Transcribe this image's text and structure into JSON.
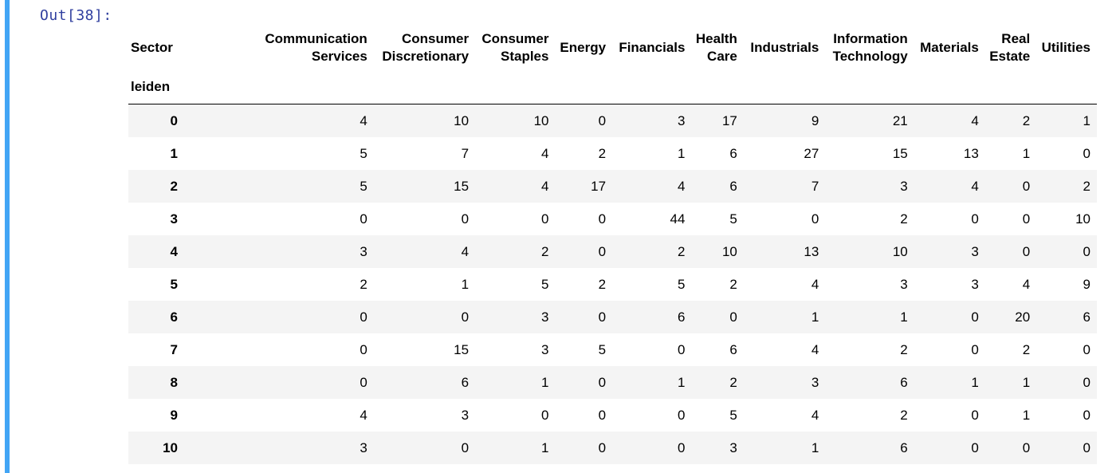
{
  "output_prompt": "Out[38]:",
  "table": {
    "columns_name": "Sector",
    "index_name": "leiden",
    "columns": [
      [
        "Communication",
        "Services"
      ],
      [
        "Consumer",
        "Discretionary"
      ],
      [
        "Consumer",
        "Staples"
      ],
      [
        "Energy"
      ],
      [
        "Financials"
      ],
      [
        "Health",
        "Care"
      ],
      [
        "Industrials"
      ],
      [
        "Information",
        "Technology"
      ],
      [
        "Materials"
      ],
      [
        "Real",
        "Estate"
      ],
      [
        "Utilities"
      ]
    ],
    "rows": [
      {
        "index": "0",
        "values": [
          "4",
          "10",
          "10",
          "0",
          "3",
          "17",
          "9",
          "21",
          "4",
          "2",
          "1"
        ]
      },
      {
        "index": "1",
        "values": [
          "5",
          "7",
          "4",
          "2",
          "1",
          "6",
          "27",
          "15",
          "13",
          "1",
          "0"
        ]
      },
      {
        "index": "2",
        "values": [
          "5",
          "15",
          "4",
          "17",
          "4",
          "6",
          "7",
          "3",
          "4",
          "0",
          "2"
        ]
      },
      {
        "index": "3",
        "values": [
          "0",
          "0",
          "0",
          "0",
          "44",
          "5",
          "0",
          "2",
          "0",
          "0",
          "10"
        ]
      },
      {
        "index": "4",
        "values": [
          "3",
          "4",
          "2",
          "0",
          "2",
          "10",
          "13",
          "10",
          "3",
          "0",
          "0"
        ]
      },
      {
        "index": "5",
        "values": [
          "2",
          "1",
          "5",
          "2",
          "5",
          "2",
          "4",
          "3",
          "3",
          "4",
          "9"
        ]
      },
      {
        "index": "6",
        "values": [
          "0",
          "0",
          "3",
          "0",
          "6",
          "0",
          "1",
          "1",
          "0",
          "20",
          "6"
        ]
      },
      {
        "index": "7",
        "values": [
          "0",
          "15",
          "3",
          "5",
          "0",
          "6",
          "4",
          "2",
          "0",
          "2",
          "0"
        ]
      },
      {
        "index": "8",
        "values": [
          "0",
          "6",
          "1",
          "0",
          "1",
          "2",
          "3",
          "6",
          "1",
          "1",
          "0"
        ]
      },
      {
        "index": "9",
        "values": [
          "4",
          "3",
          "0",
          "0",
          "0",
          "5",
          "4",
          "2",
          "0",
          "1",
          "0"
        ]
      },
      {
        "index": "10",
        "values": [
          "3",
          "0",
          "1",
          "0",
          "0",
          "3",
          "1",
          "6",
          "0",
          "0",
          "0"
        ]
      }
    ]
  },
  "colors": {
    "cell_bar": "#42a5f5",
    "prompt_text": "#303f9f",
    "row_stripe": "#f4f4f4"
  }
}
